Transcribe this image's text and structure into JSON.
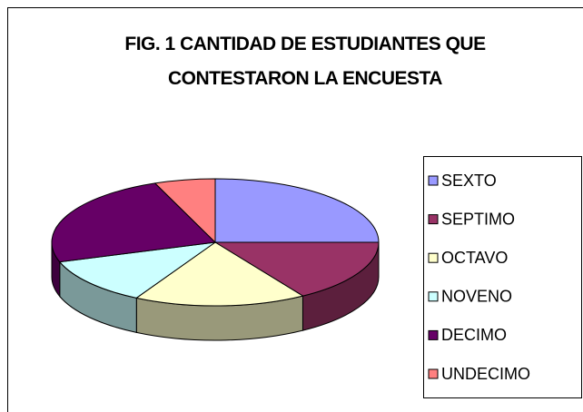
{
  "chart_data": {
    "type": "pie3d",
    "title": "FIG. 1 CANTIDAD DE ESTUDIANTES QUE CONTESTARON LA ENCUESTA",
    "categories": [
      "SEXTO",
      "SEPTIMO",
      "OCTAVO",
      "NOVENO",
      "DECIMO",
      "UNDECIMO"
    ],
    "values": [
      25,
      16,
      17,
      12,
      24,
      6
    ],
    "colors": [
      "#9999ff",
      "#993366",
      "#ffffcc",
      "#ccffff",
      "#660066",
      "#ff8080"
    ],
    "legend": "right"
  }
}
